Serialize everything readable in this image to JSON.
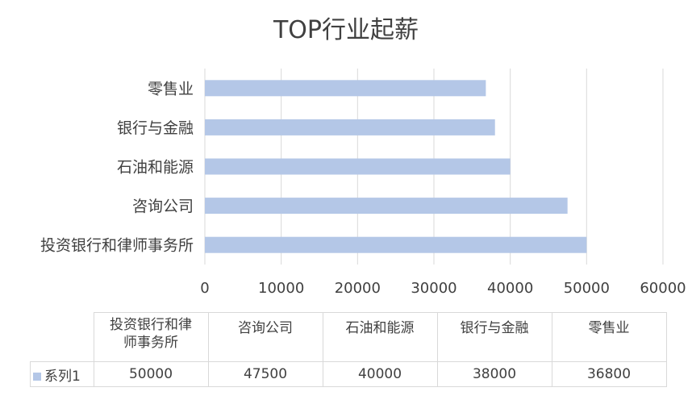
{
  "chart_data": {
    "type": "bar",
    "orientation": "horizontal",
    "title": "TOP行业起薪",
    "categories": [
      "零售业",
      "银行与金融",
      "石油和能源",
      "咨询公司",
      "投资银行和律师事务所"
    ],
    "series": [
      {
        "name": "系列1",
        "values": [
          36800,
          38000,
          40000,
          47500,
          50000
        ]
      }
    ],
    "xlim": [
      0,
      60000
    ],
    "xticks": [
      "0",
      "10000",
      "20000",
      "30000",
      "40000",
      "50000",
      "60000"
    ],
    "grid": true,
    "bar_color": "#b4c7e7",
    "grid_color": "#d9d9d9",
    "data_table": {
      "headers": [
        "投资银行和律\n师事务所",
        "咨询公司",
        "石油和能源",
        "银行与金融",
        "零售业"
      ],
      "values": [
        "50000",
        "47500",
        "40000",
        "38000",
        "36800"
      ]
    }
  }
}
